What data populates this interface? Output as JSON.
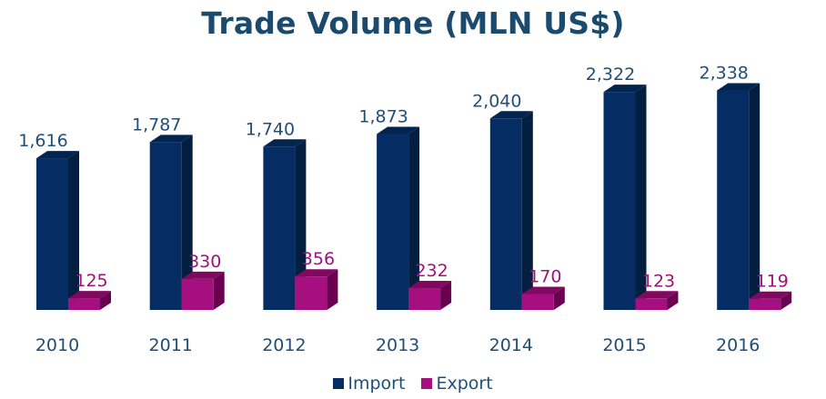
{
  "chart_data": {
    "type": "bar",
    "style": "3d-clustered-column",
    "title": "Trade Volume (MLN US$)",
    "xlabel": "",
    "ylabel": "",
    "categories": [
      "2010",
      "2011",
      "2012",
      "2013",
      "2014",
      "2015",
      "2016"
    ],
    "series": [
      {
        "name": "Import",
        "values": [
          1616,
          1787,
          1740,
          1873,
          2040,
          2322,
          2338
        ],
        "labels": [
          "1,616",
          "1,787",
          "1,740",
          "1,873",
          "2,040",
          "2,322",
          "2,338"
        ]
      },
      {
        "name": "Export",
        "values": [
          125,
          330,
          356,
          232,
          170,
          123,
          119
        ],
        "labels": [
          "125",
          "330",
          "356",
          "232",
          "170",
          "123",
          "119"
        ]
      }
    ],
    "ylim": [
      0,
      2500
    ],
    "grid": false,
    "data_labels": true,
    "legend_position": "bottom"
  },
  "colors": {
    "title": "#1b4a6f",
    "axis_text": "#1f4e79",
    "import_front": "#052d63",
    "import_side": "#021f40",
    "import_top": "#03244d",
    "import_label": "#1f4e79",
    "export_front": "#a50f7f",
    "export_side": "#6a0050",
    "export_top": "#80095f",
    "export_label": "#a0117b"
  },
  "legend": {
    "items": [
      {
        "label": "Import"
      },
      {
        "label": "Export"
      }
    ]
  }
}
